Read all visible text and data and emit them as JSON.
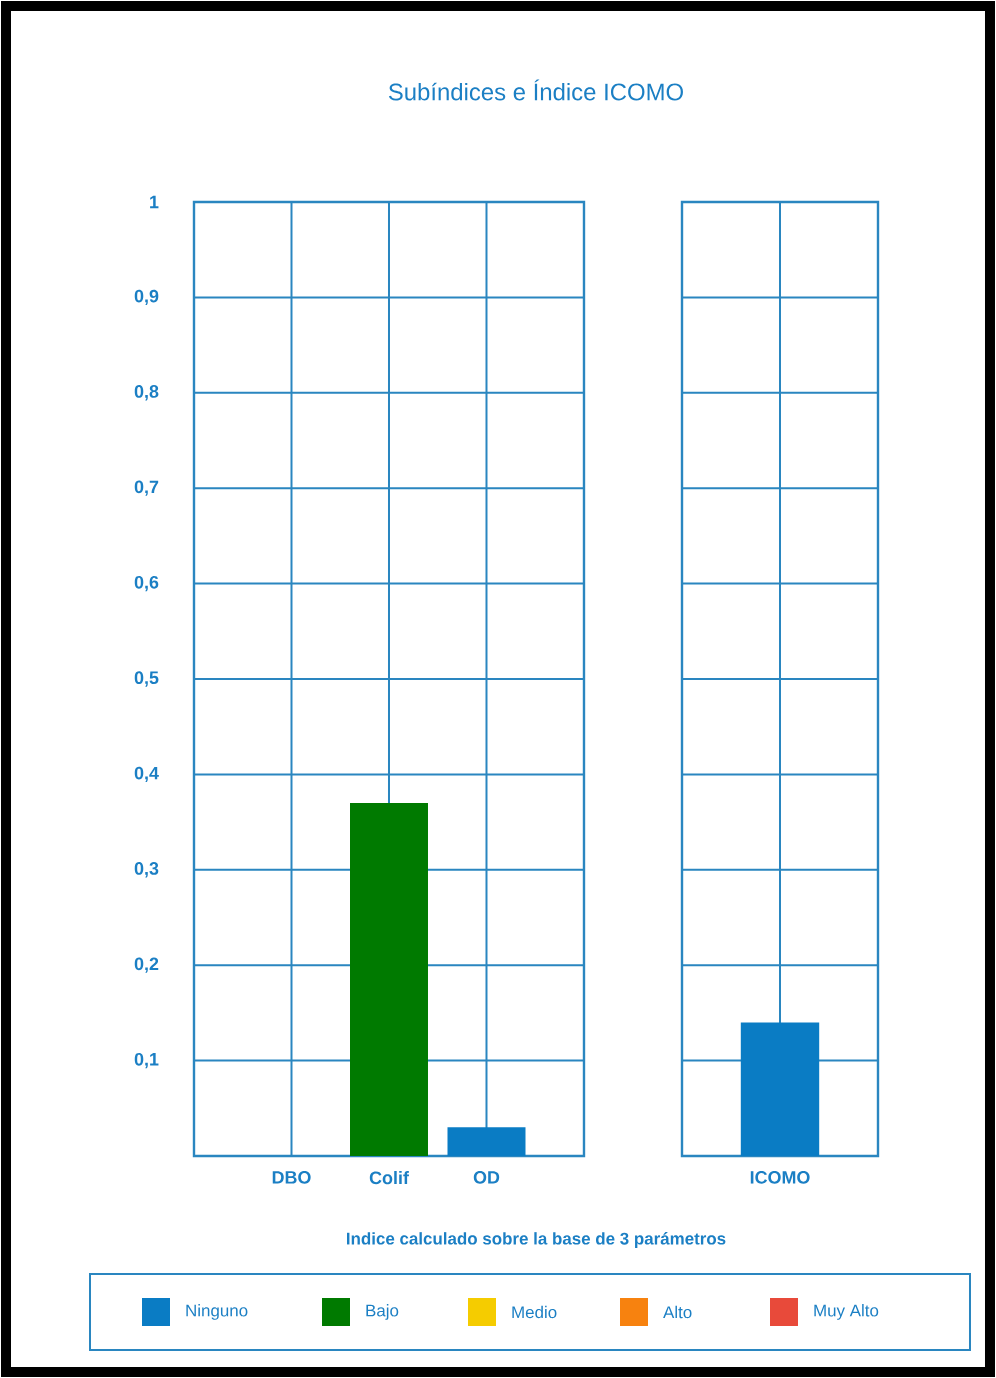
{
  "chart_data": [
    {
      "type": "bar",
      "title": "Subíndices e Índice ICOMO",
      "categories": [
        "DBO",
        "Colif",
        "OD"
      ],
      "series": [
        {
          "name": "Ninguno",
          "color": "#0a7cc4",
          "values": [
            null,
            null,
            0.03
          ]
        },
        {
          "name": "Bajo",
          "color": "#007a00",
          "values": [
            null,
            0.37,
            null
          ]
        },
        {
          "name": "Medio",
          "color": "#f5cc00",
          "values": [
            null,
            null,
            null
          ]
        },
        {
          "name": "Alto",
          "color": "#f7820f",
          "values": [
            null,
            null,
            null
          ]
        },
        {
          "name": "Muy Alto",
          "color": "#e84a3a",
          "values": [
            null,
            null,
            null
          ]
        }
      ],
      "ylim": [
        0,
        1
      ],
      "yticks": [
        {
          "value": 0.1,
          "label": "0,1"
        },
        {
          "value": 0.2,
          "label": "0,2"
        },
        {
          "value": 0.3,
          "label": "0,3"
        },
        {
          "value": 0.4,
          "label": "0,4"
        },
        {
          "value": 0.5,
          "label": "0,5"
        },
        {
          "value": 0.6,
          "label": "0,6"
        },
        {
          "value": 0.7,
          "label": "0,7"
        },
        {
          "value": 0.8,
          "label": "0,8"
        },
        {
          "value": 0.9,
          "label": "0,9"
        },
        1
      ],
      "grid": true,
      "legend": "bottom",
      "annotations": [
        "Indice calculado sobre la base de 3 parámetros"
      ]
    },
    {
      "type": "bar",
      "categories": [
        "ICOMO"
      ],
      "values": [
        0.14
      ],
      "color": "#0a7cc4",
      "ylim": [
        0,
        1
      ],
      "yticks": [
        0.1,
        0.2,
        0.3,
        0.4,
        0.5,
        0.6,
        0.7,
        0.8,
        0.9,
        1
      ],
      "grid": true,
      "tick_labels": "x"
    }
  ]
}
